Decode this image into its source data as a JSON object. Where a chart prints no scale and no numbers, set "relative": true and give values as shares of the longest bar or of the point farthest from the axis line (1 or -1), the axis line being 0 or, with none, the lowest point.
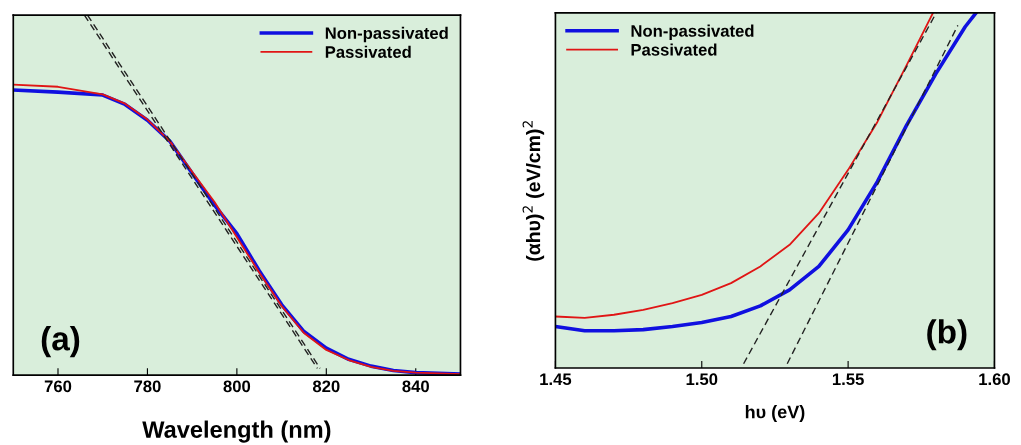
{
  "chart_data": [
    {
      "type": "line",
      "relative": true,
      "xlabel": "Wavelength (nm)",
      "xlim": [
        750,
        850
      ],
      "xticks": [
        760,
        780,
        800,
        820,
        840
      ],
      "legend": "top right",
      "tick_labels": "x",
      "annotations": [
        "(a)"
      ],
      "series": [
        {
          "name": "Non-passivated",
          "color": "#1010e0",
          "x": [
            750,
            760,
            770,
            775,
            780,
            785,
            790,
            795,
            800,
            805,
            810,
            815,
            820,
            825,
            830,
            835,
            840,
            850
          ],
          "values": [
            0.792,
            0.786,
            0.778,
            0.752,
            0.708,
            0.65,
            0.561,
            0.472,
            0.393,
            0.29,
            0.196,
            0.121,
            0.075,
            0.044,
            0.025,
            0.013,
            0.007,
            0.003
          ]
        },
        {
          "name": "Passivated",
          "color": "#e01515",
          "x": [
            750,
            760,
            770,
            775,
            780,
            785,
            790,
            795,
            800,
            805,
            810,
            815,
            820,
            825,
            830,
            835,
            840,
            850
          ],
          "values": [
            0.807,
            0.801,
            0.78,
            0.754,
            0.71,
            0.65,
            0.565,
            0.481,
            0.383,
            0.285,
            0.192,
            0.117,
            0.07,
            0.042,
            0.023,
            0.012,
            0.007,
            0.003
          ]
        },
        {
          "type": "line",
          "color": "#222222",
          "line_style": "dashed",
          "x": [
            765.9,
            818.0
          ],
          "values": [
            1.0,
            0.019
          ]
        },
        {
          "type": "line",
          "color": "#222222",
          "line_style": "dashed",
          "x": [
            766.6,
            818.6
          ],
          "values": [
            1.0,
            0.019
          ]
        }
      ]
    },
    {
      "type": "line",
      "relative": true,
      "xlabel": "hυ (eV)",
      "ylabel": "(αhυ)$^{2}$ (eV/cm)$^{2}$",
      "xlim": [
        1.45,
        1.6
      ],
      "xticks": [
        {
          "value": 1.45,
          "label": "1.45"
        },
        {
          "value": 1.5,
          "label": "1.50"
        },
        {
          "value": 1.55,
          "label": "1.55"
        },
        {
          "value": 1.6,
          "label": "1.60"
        }
      ],
      "legend": "top left",
      "tick_labels": "x",
      "annotations": [
        "(b)"
      ],
      "series": [
        {
          "name": "Non-passivated",
          "color": "#1010e0",
          "x": [
            1.45,
            1.46,
            1.47,
            1.48,
            1.49,
            1.5,
            1.51,
            1.52,
            1.53,
            1.54,
            1.55,
            1.56,
            1.57,
            1.58,
            1.59,
            1.5937
          ],
          "values": [
            0.117,
            0.105,
            0.105,
            0.108,
            0.117,
            0.128,
            0.145,
            0.175,
            0.22,
            0.286,
            0.389,
            0.525,
            0.684,
            0.829,
            0.961,
            1.0
          ]
        },
        {
          "name": "Passivated",
          "color": "#e01515",
          "x": [
            1.45,
            1.46,
            1.47,
            1.48,
            1.49,
            1.5,
            1.51,
            1.52,
            1.53,
            1.54,
            1.55,
            1.56,
            1.57,
            1.579
          ],
          "values": [
            0.145,
            0.141,
            0.15,
            0.164,
            0.183,
            0.206,
            0.239,
            0.286,
            0.347,
            0.436,
            0.558,
            0.693,
            0.853,
            1.0
          ]
        },
        {
          "type": "line",
          "color": "#222222",
          "line_style": "dashed",
          "x": [
            1.5143,
            1.5801
          ],
          "values": [
            0.012,
            1.0
          ]
        },
        {
          "type": "line",
          "color": "#222222",
          "line_style": "dashed",
          "x": [
            1.5292,
            1.5875
          ],
          "values": [
            0.012,
            0.965
          ]
        }
      ]
    }
  ]
}
